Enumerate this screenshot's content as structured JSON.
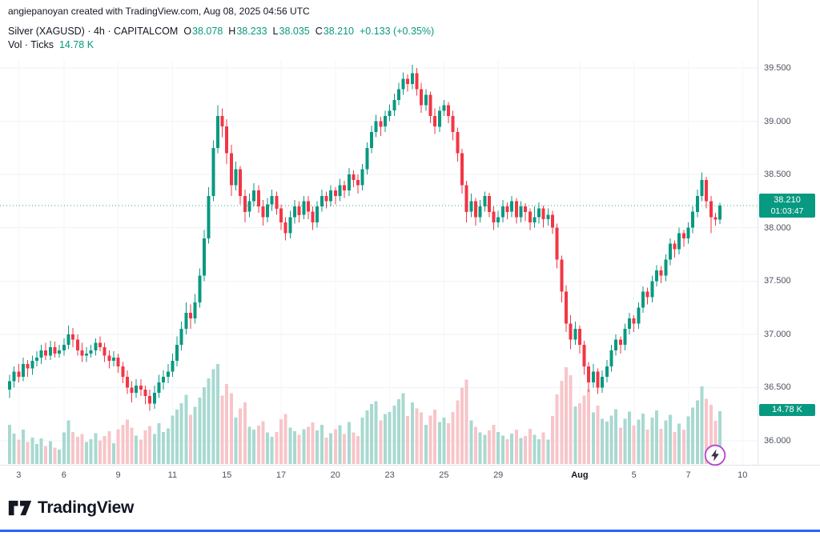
{
  "attribution": "angiepanoyan created with TradingView.com, Aug 08, 2025 04:56 UTC",
  "legend": {
    "title": "Silver (XAGUSD) · 4h · CAPITALCOM",
    "ohlc": {
      "o_label": "O",
      "o": "38.078",
      "h_label": "H",
      "h": "38.233",
      "l_label": "L",
      "l": "38.035",
      "c_label": "C",
      "c": "38.210"
    },
    "change": "+0.133 (+0.35%)",
    "volume_title": "Vol · Ticks",
    "volume_value": "14.78 K"
  },
  "price_label": {
    "value": "38.210",
    "countdown": "01:03:47"
  },
  "volume_badge": "14.78 K",
  "footer": {
    "brand": "TradingView"
  },
  "icons": {
    "boost": "lightning-icon",
    "logo": "tradingview-logo-icon"
  },
  "colors": {
    "up": "#089981",
    "down": "#f23645",
    "vol_up": "#a8d9d0",
    "vol_down": "#f7c5c9",
    "grid": "#eef1f6",
    "axis_text": "#4c525e",
    "accent_bar": "#2962ff",
    "boost_ring": "#b643cd",
    "badge_bg": "#089981"
  },
  "chart_data": {
    "type": "candlestick",
    "symbol": "Silver (XAGUSD)",
    "interval": "4h",
    "exchange": "CAPITALCOM",
    "title": "Silver (XAGUSD) · 4h · CAPITALCOM",
    "last_price": 38.21,
    "change": 0.133,
    "change_pct": 0.35,
    "current_volume_k": 14.78,
    "ylim": [
      36.0,
      39.5
    ],
    "grid": true,
    "y_ticks": [
      39.5,
      39.0,
      38.5,
      38.0,
      37.5,
      37.0,
      36.5,
      36.0
    ],
    "y_tick_labels": [
      "39.500",
      "39.000",
      "38.500",
      "38.000",
      "37.500",
      "37.000",
      "36.500",
      "36.000"
    ],
    "x_labels": [
      {
        "label": "3",
        "index": 2
      },
      {
        "label": "6",
        "index": 12
      },
      {
        "label": "9",
        "index": 24
      },
      {
        "label": "11",
        "index": 36
      },
      {
        "label": "15",
        "index": 48
      },
      {
        "label": "17",
        "index": 60
      },
      {
        "label": "20",
        "index": 72
      },
      {
        "label": "23",
        "index": 84
      },
      {
        "label": "25",
        "index": 96
      },
      {
        "label": "29",
        "index": 108
      },
      {
        "label": "Aug",
        "index": 126,
        "emphasis": true
      },
      {
        "label": "5",
        "index": 138
      },
      {
        "label": "7",
        "index": 150
      },
      {
        "label": "10",
        "index": 162
      }
    ],
    "volume_unit": "K",
    "ohlcv": [
      [
        36.48,
        36.62,
        36.4,
        36.56,
        11.0
      ],
      [
        36.56,
        36.7,
        36.5,
        36.65,
        8.5
      ],
      [
        36.65,
        36.72,
        36.55,
        36.6,
        6.8
      ],
      [
        36.6,
        36.78,
        36.56,
        36.72,
        9.6
      ],
      [
        36.72,
        36.76,
        36.6,
        36.68,
        6.2
      ],
      [
        36.68,
        36.8,
        36.62,
        36.75,
        7.4
      ],
      [
        36.75,
        36.84,
        36.7,
        36.78,
        5.6
      ],
      [
        36.78,
        36.9,
        36.72,
        36.85,
        7.2
      ],
      [
        36.85,
        36.92,
        36.76,
        36.8,
        5.0
      ],
      [
        36.8,
        36.94,
        36.76,
        36.88,
        6.4
      ],
      [
        36.88,
        36.93,
        36.78,
        36.82,
        4.6
      ],
      [
        36.82,
        36.9,
        36.78,
        36.85,
        4.0
      ],
      [
        36.85,
        36.96,
        36.8,
        36.9,
        8.8
      ],
      [
        36.9,
        37.08,
        36.86,
        37.0,
        12.2
      ],
      [
        37.0,
        37.06,
        36.88,
        36.95,
        9.0
      ],
      [
        36.95,
        37.0,
        36.8,
        36.85,
        7.6
      ],
      [
        36.85,
        36.92,
        36.74,
        36.8,
        8.4
      ],
      [
        36.8,
        36.88,
        36.74,
        36.82,
        6.2
      ],
      [
        36.82,
        36.9,
        36.78,
        36.85,
        7.0
      ],
      [
        36.85,
        36.96,
        36.8,
        36.92,
        8.6
      ],
      [
        36.92,
        36.98,
        36.84,
        36.88,
        6.6
      ],
      [
        36.88,
        36.92,
        36.74,
        36.8,
        7.8
      ],
      [
        36.8,
        36.85,
        36.68,
        36.75,
        9.2
      ],
      [
        36.75,
        36.84,
        36.7,
        36.78,
        5.8
      ],
      [
        36.78,
        36.82,
        36.64,
        36.7,
        9.8
      ],
      [
        36.7,
        36.74,
        36.54,
        36.6,
        11.0
      ],
      [
        36.6,
        36.66,
        36.44,
        36.5,
        12.4
      ],
      [
        36.5,
        36.56,
        36.36,
        36.45,
        10.2
      ],
      [
        36.45,
        36.58,
        36.4,
        36.52,
        8.0
      ],
      [
        36.52,
        36.58,
        36.42,
        36.48,
        6.8
      ],
      [
        36.48,
        36.52,
        36.34,
        36.42,
        9.4
      ],
      [
        36.42,
        36.48,
        36.28,
        36.35,
        10.6
      ],
      [
        36.35,
        36.52,
        36.3,
        36.45,
        8.4
      ],
      [
        36.45,
        36.62,
        36.4,
        36.55,
        11.4
      ],
      [
        36.55,
        36.66,
        36.48,
        36.6,
        9.0
      ],
      [
        36.6,
        36.72,
        36.54,
        36.65,
        10.0
      ],
      [
        36.65,
        36.82,
        36.6,
        36.75,
        13.5
      ],
      [
        36.75,
        36.98,
        36.7,
        36.9,
        15.2
      ],
      [
        36.9,
        37.12,
        36.85,
        37.05,
        17.0
      ],
      [
        37.05,
        37.3,
        37.0,
        37.2,
        19.4
      ],
      [
        37.2,
        37.28,
        37.05,
        37.15,
        13.8
      ],
      [
        37.15,
        37.38,
        37.1,
        37.3,
        16.0
      ],
      [
        37.3,
        37.62,
        37.25,
        37.55,
        18.6
      ],
      [
        37.55,
        37.98,
        37.5,
        37.9,
        21.5
      ],
      [
        37.9,
        38.38,
        37.85,
        38.3,
        24.0
      ],
      [
        38.3,
        38.82,
        38.25,
        38.75,
        26.5
      ],
      [
        38.75,
        39.15,
        38.7,
        39.05,
        28.0
      ],
      [
        39.05,
        39.12,
        38.85,
        38.95,
        19.2
      ],
      [
        38.95,
        39.02,
        38.6,
        38.7,
        22.4
      ],
      [
        38.7,
        38.78,
        38.3,
        38.4,
        19.8
      ],
      [
        38.4,
        38.62,
        38.35,
        38.55,
        13.0
      ],
      [
        38.55,
        38.58,
        38.22,
        38.3,
        15.6
      ],
      [
        38.3,
        38.36,
        38.05,
        38.15,
        17.2
      ],
      [
        38.15,
        38.32,
        38.1,
        38.25,
        10.4
      ],
      [
        38.25,
        38.42,
        38.2,
        38.35,
        9.6
      ],
      [
        38.35,
        38.4,
        38.14,
        38.2,
        10.8
      ],
      [
        38.2,
        38.26,
        38.02,
        38.1,
        12.0
      ],
      [
        38.1,
        38.28,
        38.05,
        38.22,
        8.8
      ],
      [
        38.22,
        38.36,
        38.16,
        38.3,
        7.6
      ],
      [
        38.3,
        38.34,
        38.12,
        38.18,
        9.0
      ],
      [
        38.18,
        38.22,
        37.98,
        38.05,
        12.6
      ],
      [
        38.05,
        38.1,
        37.88,
        37.95,
        14.0
      ],
      [
        37.95,
        38.16,
        37.9,
        38.1,
        10.2
      ],
      [
        38.1,
        38.26,
        38.04,
        38.2,
        9.2
      ],
      [
        38.2,
        38.25,
        38.05,
        38.12,
        8.2
      ],
      [
        38.12,
        38.3,
        38.08,
        38.25,
        9.8
      ],
      [
        38.25,
        38.3,
        38.08,
        38.15,
        10.4
      ],
      [
        38.15,
        38.2,
        37.98,
        38.05,
        11.6
      ],
      [
        38.05,
        38.25,
        38.0,
        38.2,
        9.4
      ],
      [
        38.2,
        38.36,
        38.15,
        38.3,
        11.0
      ],
      [
        38.3,
        38.34,
        38.18,
        38.25,
        7.4
      ],
      [
        38.25,
        38.4,
        38.2,
        38.35,
        8.6
      ],
      [
        38.35,
        38.38,
        38.22,
        38.3,
        9.8
      ],
      [
        38.3,
        38.46,
        38.25,
        38.4,
        10.9
      ],
      [
        38.4,
        38.44,
        38.28,
        38.35,
        8.4
      ],
      [
        38.35,
        38.56,
        38.3,
        38.5,
        11.8
      ],
      [
        38.5,
        38.54,
        38.38,
        38.45,
        8.8
      ],
      [
        38.45,
        38.5,
        38.32,
        38.4,
        7.8
      ],
      [
        38.4,
        38.6,
        38.35,
        38.55,
        13.0
      ],
      [
        38.55,
        38.8,
        38.5,
        38.75,
        15.0
      ],
      [
        38.75,
        38.96,
        38.7,
        38.9,
        16.8
      ],
      [
        38.9,
        39.06,
        38.85,
        39.0,
        17.6
      ],
      [
        39.0,
        39.04,
        38.86,
        38.95,
        12.2
      ],
      [
        38.95,
        39.1,
        38.9,
        39.05,
        14.0
      ],
      [
        39.05,
        39.16,
        39.0,
        39.1,
        14.6
      ],
      [
        39.1,
        39.26,
        39.05,
        39.2,
        16.4
      ],
      [
        39.2,
        39.36,
        39.15,
        39.3,
        18.2
      ],
      [
        39.3,
        39.46,
        39.25,
        39.4,
        19.8
      ],
      [
        39.4,
        39.44,
        39.28,
        39.35,
        13.4
      ],
      [
        39.35,
        39.53,
        39.3,
        39.45,
        17.2
      ],
      [
        39.45,
        39.5,
        39.24,
        39.3,
        15.6
      ],
      [
        39.3,
        39.36,
        39.08,
        39.15,
        14.4
      ],
      [
        39.15,
        39.3,
        39.1,
        39.25,
        11.0
      ],
      [
        39.25,
        39.28,
        38.98,
        39.05,
        13.6
      ],
      [
        39.05,
        39.12,
        38.88,
        38.95,
        15.2
      ],
      [
        38.95,
        39.14,
        38.9,
        39.1,
        11.8
      ],
      [
        39.1,
        39.2,
        39.05,
        39.15,
        13.0
      ],
      [
        39.15,
        39.18,
        38.98,
        39.05,
        11.4
      ],
      [
        39.05,
        39.1,
        38.82,
        38.9,
        14.6
      ],
      [
        38.9,
        38.94,
        38.62,
        38.7,
        17.8
      ],
      [
        38.7,
        38.74,
        38.32,
        38.4,
        21.4
      ],
      [
        38.4,
        38.44,
        38.05,
        38.15,
        23.6
      ],
      [
        38.15,
        38.32,
        38.1,
        38.25,
        12.2
      ],
      [
        38.25,
        38.28,
        38.02,
        38.1,
        10.4
      ],
      [
        38.1,
        38.26,
        38.05,
        38.2,
        8.8
      ],
      [
        38.2,
        38.34,
        38.15,
        38.3,
        8.2
      ],
      [
        38.3,
        38.33,
        38.1,
        38.15,
        9.4
      ],
      [
        38.15,
        38.2,
        37.98,
        38.05,
        11.0
      ],
      [
        38.05,
        38.16,
        38.0,
        38.1,
        9.0
      ],
      [
        38.1,
        38.26,
        38.05,
        38.2,
        7.9
      ],
      [
        38.2,
        38.24,
        38.08,
        38.15,
        6.9
      ],
      [
        38.15,
        38.3,
        38.1,
        38.25,
        8.5
      ],
      [
        38.25,
        38.28,
        38.04,
        38.1,
        9.6
      ],
      [
        38.1,
        38.25,
        38.05,
        38.2,
        7.3
      ],
      [
        38.2,
        38.23,
        38.06,
        38.15,
        7.8
      ],
      [
        38.15,
        38.18,
        37.98,
        38.05,
        9.9
      ],
      [
        38.05,
        38.2,
        38.0,
        38.1,
        8.2
      ],
      [
        38.1,
        38.24,
        38.04,
        38.18,
        7.0
      ],
      [
        38.18,
        38.21,
        38.0,
        38.08,
        8.8
      ],
      [
        38.08,
        38.18,
        38.02,
        38.12,
        6.8
      ],
      [
        38.12,
        38.16,
        37.94,
        38.0,
        13.4
      ],
      [
        38.0,
        38.04,
        37.62,
        37.7,
        19.5
      ],
      [
        37.7,
        37.74,
        37.3,
        37.4,
        23.3
      ],
      [
        37.4,
        37.46,
        37.02,
        37.1,
        27.1
      ],
      [
        37.1,
        37.18,
        36.86,
        36.95,
        24.9
      ],
      [
        36.95,
        37.12,
        36.9,
        37.05,
        16.1
      ],
      [
        37.05,
        37.08,
        36.82,
        36.9,
        17.0
      ],
      [
        36.9,
        36.94,
        36.62,
        36.7,
        19.1
      ],
      [
        36.7,
        36.74,
        36.46,
        36.55,
        20.9
      ],
      [
        36.55,
        36.72,
        36.5,
        36.65,
        14.4
      ],
      [
        36.65,
        36.68,
        36.44,
        36.5,
        16.4
      ],
      [
        36.5,
        36.66,
        36.45,
        36.6,
        12.7
      ],
      [
        36.6,
        36.76,
        36.55,
        36.7,
        11.9
      ],
      [
        36.7,
        36.9,
        36.65,
        36.85,
        13.6
      ],
      [
        36.85,
        37.0,
        36.8,
        36.95,
        15.3
      ],
      [
        36.95,
        36.98,
        36.82,
        36.9,
        10.2
      ],
      [
        36.9,
        37.1,
        36.85,
        37.05,
        12.7
      ],
      [
        37.05,
        37.2,
        37.0,
        37.15,
        14.7
      ],
      [
        37.15,
        37.18,
        37.02,
        37.1,
        10.7
      ],
      [
        37.1,
        37.3,
        37.05,
        37.25,
        12.4
      ],
      [
        37.25,
        37.45,
        37.2,
        37.4,
        14.1
      ],
      [
        37.4,
        37.44,
        37.28,
        37.35,
        9.6
      ],
      [
        37.35,
        37.55,
        37.3,
        37.5,
        13.0
      ],
      [
        37.5,
        37.65,
        37.45,
        37.6,
        15.0
      ],
      [
        37.6,
        37.64,
        37.48,
        37.55,
        9.9
      ],
      [
        37.55,
        37.75,
        37.5,
        37.7,
        12.2
      ],
      [
        37.7,
        37.9,
        37.65,
        37.85,
        13.8
      ],
      [
        37.85,
        37.88,
        37.72,
        37.8,
        9.0
      ],
      [
        37.8,
        38.0,
        37.75,
        37.95,
        11.3
      ],
      [
        37.95,
        37.98,
        37.82,
        37.9,
        9.6
      ],
      [
        37.9,
        38.05,
        37.85,
        38.0,
        13.3
      ],
      [
        38.0,
        38.2,
        37.95,
        38.15,
        15.8
      ],
      [
        38.15,
        38.36,
        38.1,
        38.3,
        17.8
      ],
      [
        38.3,
        38.52,
        38.25,
        38.45,
        21.7
      ],
      [
        38.45,
        38.48,
        38.18,
        38.25,
        18.3
      ],
      [
        38.25,
        38.3,
        37.95,
        38.1,
        16.6
      ],
      [
        38.1,
        38.14,
        38.02,
        38.078,
        12.1
      ],
      [
        38.078,
        38.233,
        38.035,
        38.21,
        14.78
      ]
    ]
  }
}
